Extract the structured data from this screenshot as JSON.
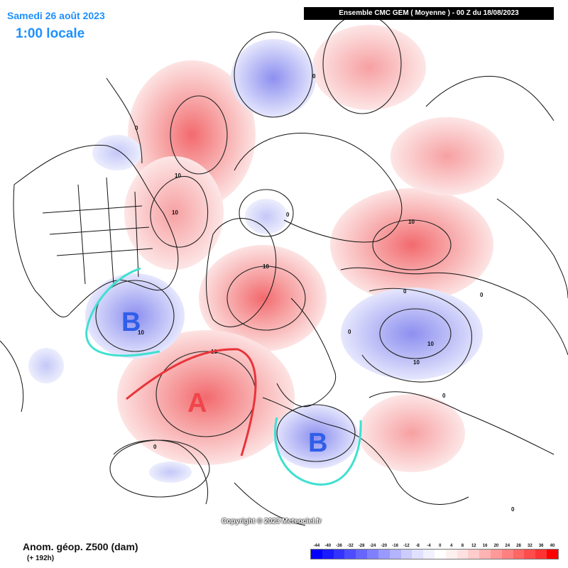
{
  "header": {
    "date": "Samedi 26 août 2023",
    "local_time": "1:00 locale",
    "run_info": "Ensemble CMC GEM  ( Moyenne )  -  00 Z du 18/08/2023"
  },
  "footer": {
    "field": "Anom. géop. Z500 (dam)",
    "lead": "(+ 192h)",
    "copyright": "Copyright © 2023 Meteociel.fr"
  },
  "colors": {
    "positive": "#f0454a",
    "negative": "#2f5fe8",
    "trough_line": "#40e0d0",
    "ridge_line": "#e8343a"
  },
  "markers": {
    "high": "A",
    "low_west": "B",
    "low_europe": "B"
  },
  "contour_labels": [
    "0",
    "0",
    "0",
    "0",
    "0",
    "0",
    "0",
    "0",
    "0",
    "10",
    "10",
    "10",
    "10",
    "10",
    "10",
    "10",
    "10"
  ],
  "legend": {
    "ticks": [
      "-44",
      "-40",
      "-36",
      "-32",
      "-28",
      "-24",
      "-20",
      "-16",
      "-12",
      "-8",
      "-4",
      "0",
      "4",
      "8",
      "12",
      "16",
      "20",
      "24",
      "28",
      "32",
      "36",
      "40"
    ],
    "colors": [
      "#0000ff",
      "#1a1aff",
      "#3333ff",
      "#4d4dff",
      "#6666ff",
      "#8080ff",
      "#9999ff",
      "#b3b3ff",
      "#ccccff",
      "#e0e0ff",
      "#f0f0ff",
      "#ffffff",
      "#fff0f0",
      "#ffe0e0",
      "#ffcccc",
      "#ffb3b3",
      "#ff9999",
      "#ff8080",
      "#ff6666",
      "#ff4d4d",
      "#ff3333",
      "#ff0000"
    ]
  }
}
